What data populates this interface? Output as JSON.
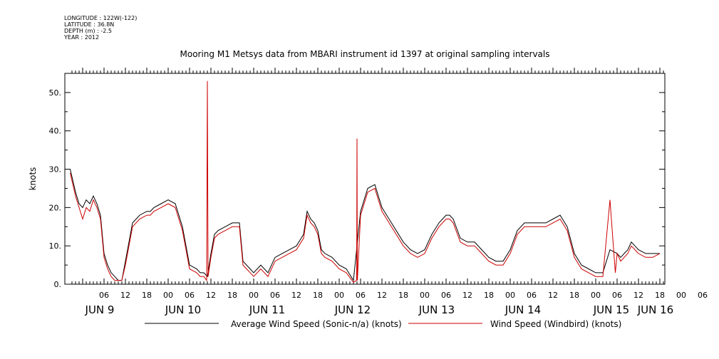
{
  "header": {
    "longitude": "LONGITUDE : 122W(-122)",
    "latitude": "LATITUDE : 36.8N",
    "depth": "DEPTH (m) : -2.5",
    "year": "YEAR : 2012"
  },
  "chart_data": {
    "type": "line",
    "title": "Mooring M1 Metsys data from MBARI instrument id 1397 at original sampling intervals",
    "ylabel": "knots",
    "xlabel": "",
    "ylim": [
      0,
      55
    ],
    "y_ticks": [
      "0.",
      "10.",
      "20.",
      "30.",
      "40.",
      "50."
    ],
    "x_unit": "hours since Jun 9 00:00, 2012",
    "xlim": [
      -3.5,
      163
    ],
    "x_hour_labels": [
      "06",
      "12",
      "18",
      "00",
      "06",
      "12",
      "18",
      "00",
      "06",
      "12",
      "18",
      "00",
      "06",
      "12",
      "18",
      "00",
      "06",
      "12",
      "18",
      "00",
      "06",
      "12",
      "18",
      "00",
      "06",
      "12",
      "18",
      "00",
      "06",
      "12",
      "18",
      "00"
    ],
    "x_day_labels": [
      "JUN  9",
      "JUN 10",
      "JUN 11",
      "JUN 12",
      "JUN 13",
      "JUN 14",
      "JUN 15",
      "JUN 16"
    ],
    "grid": false,
    "legend_placement": "bottom",
    "series": [
      {
        "name": "Average Wind Speed (Sonic-n/a) (knots)",
        "color": "#000000",
        "x": [
          -3.5,
          -2,
          -1,
          0,
          1,
          2,
          3,
          4,
          5,
          6,
          7,
          8,
          9,
          10,
          11,
          12,
          14,
          16,
          18,
          19,
          20,
          22,
          24,
          26,
          28,
          30,
          32,
          33,
          34,
          35,
          36,
          37,
          38,
          40,
          42,
          44,
          45,
          46,
          48,
          50,
          52,
          54,
          56,
          58,
          60,
          62,
          63,
          64,
          65,
          66,
          67,
          68,
          70,
          72,
          74,
          76,
          78,
          80,
          82,
          84,
          86,
          88,
          90,
          92,
          94,
          96,
          98,
          100,
          101,
          102,
          103,
          104,
          106,
          108,
          110,
          112,
          113,
          114,
          116,
          118,
          120,
          122,
          124,
          126,
          128,
          130,
          132,
          134,
          136,
          138,
          140,
          142,
          144,
          146,
          148,
          150,
          151,
          152,
          153,
          154,
          155,
          156,
          158,
          160,
          162
        ],
        "y": [
          30,
          24,
          21,
          20,
          22,
          21,
          23,
          21,
          18,
          8,
          5,
          3,
          2,
          1,
          1,
          6,
          16,
          18,
          19,
          19,
          20,
          21,
          22,
          21,
          15,
          5,
          4,
          3,
          3,
          2,
          8,
          13,
          14,
          15,
          16,
          16,
          6,
          5,
          3,
          5,
          3,
          7,
          8,
          9,
          10,
          13,
          19,
          17,
          16,
          14,
          9,
          8,
          7,
          5,
          4,
          1,
          19,
          25,
          26,
          20,
          17,
          14,
          11,
          9,
          8,
          9,
          13,
          16,
          17,
          18,
          18,
          17,
          12,
          11,
          11,
          9,
          8,
          7,
          6,
          6,
          9,
          14,
          16,
          16,
          16,
          16,
          17,
          18,
          15,
          8,
          5,
          4,
          3,
          3,
          9,
          8,
          7,
          8,
          9,
          11,
          10,
          9,
          8,
          8,
          8
        ]
      },
      {
        "name": "Wind Speed (Windbird) (knots)",
        "color": "#cc0000",
        "x": [
          -3.5,
          -2,
          -1,
          0,
          1,
          2,
          3,
          4,
          5,
          6,
          7,
          8,
          9,
          10,
          11,
          12,
          14,
          16,
          18,
          19,
          20,
          22,
          24,
          26,
          28,
          30,
          32,
          33,
          34,
          34.8,
          35,
          35.2,
          36,
          37,
          38,
          40,
          42,
          44,
          45,
          46,
          48,
          50,
          52,
          54,
          56,
          58,
          60,
          62,
          63,
          64,
          65,
          66,
          67,
          68,
          70,
          72,
          74,
          76,
          76.9,
          77,
          77.1,
          78,
          80,
          82,
          84,
          86,
          88,
          90,
          92,
          94,
          96,
          98,
          100,
          101,
          102,
          103,
          104,
          106,
          108,
          110,
          112,
          113,
          114,
          116,
          118,
          120,
          122,
          124,
          126,
          128,
          130,
          132,
          134,
          136,
          138,
          140,
          142,
          144,
          146,
          148,
          149.5,
          150,
          150.5,
          151,
          152,
          153,
          154,
          155,
          156,
          158,
          160,
          162
        ],
        "y": [
          29,
          23,
          20,
          17,
          20,
          19,
          22,
          20,
          17,
          7,
          4,
          2,
          1,
          1,
          1,
          5,
          15,
          17,
          18,
          18,
          19,
          20,
          21,
          20,
          14,
          4,
          3,
          2,
          2,
          1,
          53,
          2,
          7,
          12,
          13,
          14,
          15,
          15,
          5,
          4,
          2,
          4,
          2,
          6,
          7,
          8,
          9,
          12,
          18,
          16,
          15,
          13,
          8,
          7,
          6,
          4,
          3,
          0.5,
          1,
          38,
          1,
          18,
          24,
          25,
          19,
          16,
          13,
          10,
          8,
          7,
          8,
          12,
          15,
          16,
          17,
          17,
          16,
          11,
          10,
          10,
          8,
          7,
          6,
          5,
          5,
          8,
          13,
          15,
          15,
          15,
          15,
          16,
          17,
          14,
          7,
          4,
          3,
          2,
          2,
          22,
          3,
          8,
          7,
          6,
          7,
          8,
          10,
          9,
          8,
          7,
          7,
          8
        ]
      }
    ]
  }
}
